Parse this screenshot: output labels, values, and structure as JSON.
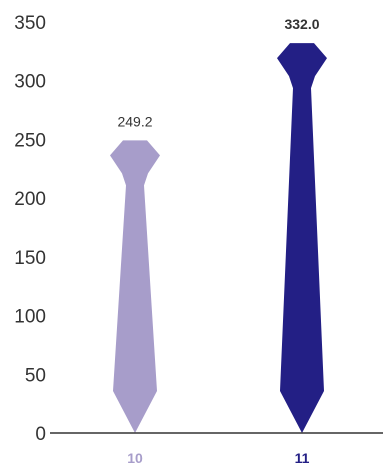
{
  "chart_data": {
    "type": "bar",
    "categories": [
      "10",
      "11"
    ],
    "values": [
      249.2,
      332.0
    ],
    "value_labels": [
      "249.2",
      "332.0"
    ],
    "ylim": [
      0,
      350
    ],
    "yticks": [
      "0",
      "50",
      "100",
      "150",
      "200",
      "250",
      "300",
      "350"
    ],
    "grid": false,
    "mark_shape": "necktie",
    "colors": [
      "#a79dca",
      "#231f85"
    ]
  }
}
